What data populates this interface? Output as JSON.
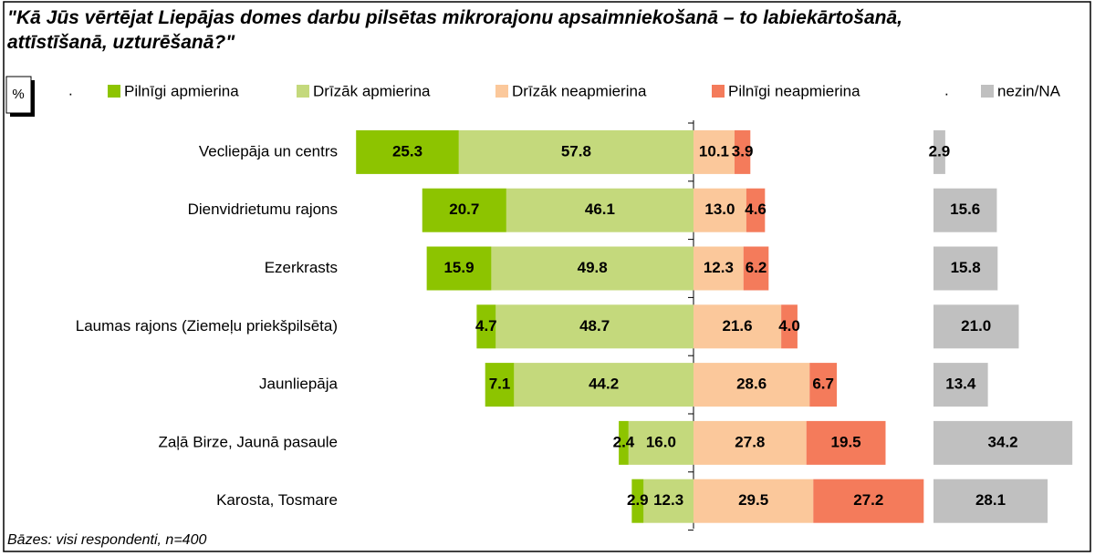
{
  "chart_data": {
    "type": "diverging_bar",
    "title": "\"Kā Jūs vērtējat Liepājas domes darbu pilsētas mikrorajonu apsaimniekošanā – to labiekārtošanā, attīstīšanā, uzturēšanā?\"",
    "unit_label": "%",
    "spacer_labels": [
      ".",
      "."
    ],
    "footnote": "Bāzes: visi respondenti, n=400",
    "categories": [
      "Vecliepāja un centrs",
      "Dienvidrietumu rajons",
      "Ezerkrasts",
      "Laumas rajons (Ziemeļu priekšpilsēta)",
      "Jaunliepāja",
      "Zaļā Birze, Jaunā pasaule",
      "Karosta, Tosmare"
    ],
    "series": [
      {
        "name": "Pilnīgi apmierina",
        "color": "#8dc400",
        "side": "left",
        "values": [
          25.3,
          20.7,
          15.9,
          4.7,
          7.1,
          2.4,
          2.9
        ],
        "value_labels": [
          "25.3",
          "20.7",
          "15.9",
          "4.7",
          "7.1",
          "2.4",
          "2.9"
        ]
      },
      {
        "name": "Drīzāk apmierina",
        "color": "#c4d97c",
        "side": "left",
        "values": [
          57.8,
          46.1,
          49.8,
          48.7,
          44.2,
          16.0,
          12.3
        ],
        "value_labels": [
          "57.8",
          "46.1",
          "49.8",
          "48.7",
          "44.2",
          "16.0",
          "12.3"
        ]
      },
      {
        "name": "Drīzāk neapmierina",
        "color": "#fbc89b",
        "side": "right",
        "values": [
          10.1,
          13.0,
          12.3,
          21.6,
          28.6,
          27.8,
          29.5
        ],
        "value_labels": [
          "10.1",
          "13.0",
          "12.3",
          "21.6",
          "28.6",
          "27.8",
          "29.5"
        ]
      },
      {
        "name": "Pilnīgi neapmierina",
        "color": "#f47b5b",
        "side": "right",
        "values": [
          3.9,
          4.6,
          6.2,
          4.0,
          6.7,
          19.5,
          27.2
        ],
        "value_labels": [
          "3.9",
          "4.6",
          "6.2",
          "4.0",
          "6.7",
          "19.5",
          "27.2"
        ]
      },
      {
        "name": "nezin/NA",
        "color": "#c0c0c0",
        "side": "na",
        "values": [
          2.9,
          15.6,
          15.8,
          21.0,
          13.4,
          34.2,
          28.1
        ],
        "value_labels": [
          "2.9",
          "15.6",
          "15.8",
          "21.0",
          "13.4",
          "34.2",
          "28.1"
        ]
      }
    ]
  }
}
